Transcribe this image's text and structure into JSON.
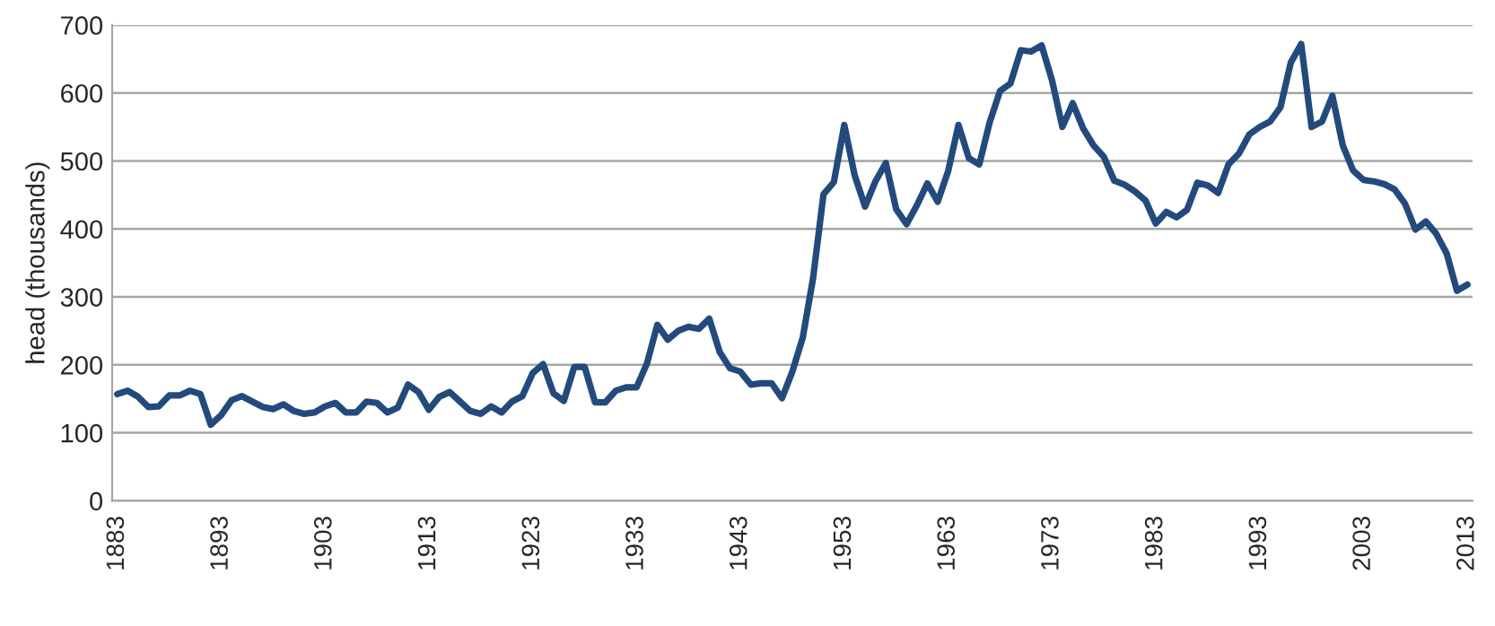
{
  "chart_data": {
    "type": "line",
    "ylabel": "head (thousands)",
    "categories": [
      "1883",
      null,
      null,
      null,
      null,
      null,
      null,
      null,
      null,
      null,
      "1893",
      null,
      null,
      null,
      null,
      null,
      null,
      null,
      null,
      null,
      "1903",
      null,
      null,
      null,
      null,
      null,
      null,
      null,
      null,
      null,
      "1913",
      null,
      null,
      null,
      null,
      null,
      null,
      null,
      null,
      null,
      "1923",
      null,
      null,
      null,
      null,
      null,
      null,
      null,
      null,
      null,
      "1933",
      null,
      null,
      null,
      null,
      null,
      null,
      null,
      null,
      null,
      "1943",
      null,
      null,
      null,
      null,
      null,
      null,
      null,
      null,
      null,
      "1953",
      null,
      null,
      null,
      null,
      null,
      null,
      null,
      null,
      null,
      "1963",
      null,
      null,
      null,
      null,
      null,
      null,
      null,
      null,
      null,
      "1973",
      null,
      null,
      null,
      null,
      null,
      null,
      null,
      null,
      null,
      "1983",
      null,
      null,
      null,
      null,
      null,
      null,
      null,
      null,
      null,
      "1993",
      null,
      null,
      null,
      null,
      null,
      null,
      null,
      null,
      null,
      "2003",
      null,
      null,
      null,
      null,
      null,
      null,
      null,
      null,
      null,
      "2013"
    ],
    "series": [
      {
        "color": "#234a7c",
        "values": [
          157,
          162,
          153,
          138,
          139,
          155,
          155,
          162,
          157,
          112,
          126,
          148,
          154,
          146,
          138,
          135,
          142,
          132,
          128,
          130,
          139,
          144,
          130,
          130,
          146,
          144,
          130,
          137,
          171,
          160,
          134,
          153,
          160,
          146,
          132,
          128,
          139,
          130,
          146,
          154,
          188,
          201,
          158,
          147,
          197,
          197,
          145,
          145,
          162,
          167,
          167,
          202,
          259,
          237,
          250,
          256,
          253,
          268,
          219,
          195,
          190,
          171,
          173,
          173,
          151,
          190,
          240,
          328,
          451,
          469,
          553,
          479,
          433,
          470,
          497,
          429,
          407,
          435,
          467,
          440,
          485,
          553,
          504,
          495,
          557,
          603,
          614,
          663,
          661,
          670,
          619,
          550,
          585,
          548,
          523,
          506,
          471,
          465,
          455,
          442,
          408,
          425,
          417,
          428,
          468,
          464,
          453,
          495,
          511,
          539,
          550,
          558,
          579,
          645,
          672,
          550,
          558,
          596,
          523,
          486,
          472,
          470,
          466,
          458,
          437,
          399,
          411,
          393,
          364,
          309,
          318
        ]
      }
    ],
    "ylim": [
      0,
      700
    ],
    "yticks": [
      0,
      100,
      200,
      300,
      400,
      500,
      600,
      700
    ],
    "grid": "y",
    "marker": "none",
    "line_style": "solid"
  }
}
